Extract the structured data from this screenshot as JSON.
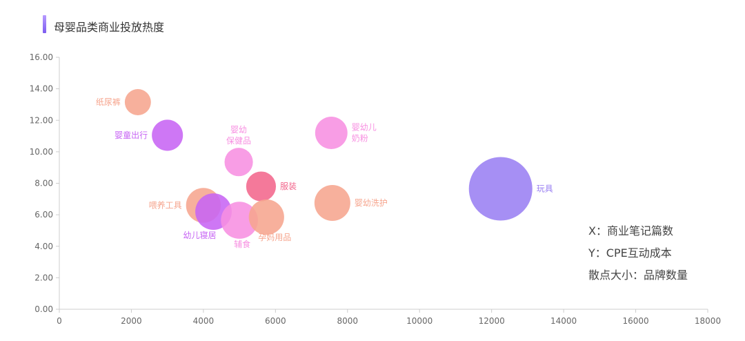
{
  "title": "母婴品类商业投放热度",
  "notes": {
    "x": "X：商业笔记篇数",
    "y": "Y：CPE互动成本",
    "size": "散点大小：品牌数量"
  },
  "colors": {
    "orange": "#f6a58e",
    "pink": "#f78fe1",
    "purple": "#c764f4",
    "rose": "#f2668c",
    "violet": "#9a80f2"
  },
  "chart_data": {
    "type": "scatter",
    "title": "母婴品类商业投放热度",
    "xlabel": "",
    "ylabel": "",
    "xlim": [
      0,
      18000
    ],
    "ylim": [
      0,
      16
    ],
    "x_ticks": [
      "0",
      "2000",
      "4000",
      "6000",
      "8000",
      "10000",
      "12000",
      "14000",
      "16000",
      "18000"
    ],
    "y_ticks": [
      "0.00",
      "2.00",
      "4.00",
      "6.00",
      "8.00",
      "10.00",
      "12.00",
      "14.00",
      "16.00"
    ],
    "grid": false,
    "points": [
      {
        "label": "纸尿裤",
        "x": 2180,
        "y": 13.15,
        "size": 0.17,
        "color": "#f6a58e",
        "label_lines": [
          "纸尿裤"
        ],
        "label_pos": "left"
      },
      {
        "label": "婴童出行",
        "x": 3000,
        "y": 11.05,
        "size": 0.24,
        "color": "#c764f4",
        "label_lines": [
          "婴童出行"
        ],
        "label_pos": "left"
      },
      {
        "label": "婴幼保健品",
        "x": 4980,
        "y": 9.35,
        "size": 0.2,
        "color": "#f78fe1",
        "label_lines": [
          "婴幼",
          "保健品"
        ],
        "label_pos": "top"
      },
      {
        "label": "婴幼儿奶粉",
        "x": 7550,
        "y": 11.2,
        "size": 0.26,
        "color": "#f78fe1",
        "label_lines": [
          "婴幼儿",
          "奶粉"
        ],
        "label_pos": "right"
      },
      {
        "label": "服装",
        "x": 5600,
        "y": 7.8,
        "size": 0.22,
        "color": "#f2668c",
        "label_lines": [
          "服装"
        ],
        "label_pos": "right"
      },
      {
        "label": "喂养工具",
        "x": 4000,
        "y": 6.6,
        "size": 0.3,
        "color": "#f6a58e",
        "label_lines": [
          "喂养工具"
        ],
        "label_pos": "left"
      },
      {
        "label": "幼儿寝居",
        "x": 4280,
        "y": 6.2,
        "size": 0.33,
        "color": "#c764f4",
        "label_lines": [
          "幼儿寝居"
        ],
        "label_pos": "bottom-left"
      },
      {
        "label": "辅食",
        "x": 5000,
        "y": 5.65,
        "size": 0.34,
        "color": "#f78fe1",
        "label_lines": [
          "辅食"
        ],
        "label_pos": "bottom"
      },
      {
        "label": "孕妈用品",
        "x": 5750,
        "y": 5.85,
        "size": 0.31,
        "color": "#f6a58e",
        "label_lines": [
          "孕妈用品"
        ],
        "label_pos": "bottom-right"
      },
      {
        "label": "婴幼洗护",
        "x": 7580,
        "y": 6.75,
        "size": 0.32,
        "color": "#f6a58e",
        "label_lines": [
          "婴幼洗护"
        ],
        "label_pos": "right"
      },
      {
        "label": "玩具",
        "x": 12250,
        "y": 7.65,
        "size": 1.0,
        "color": "#9a80f2",
        "label_lines": [
          "玩具"
        ],
        "label_pos": "right"
      }
    ]
  }
}
